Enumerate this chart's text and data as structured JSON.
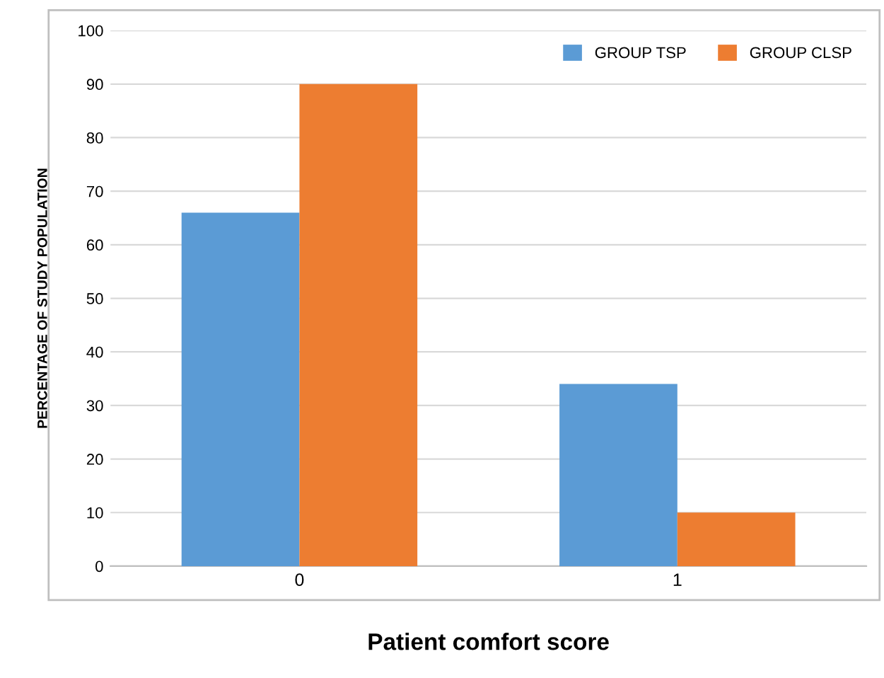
{
  "chart_data": {
    "type": "bar",
    "xlabel": "Patient comfort score",
    "ylabel": "PERCENTAGE OF STUDY POPULATION",
    "categories": [
      "0",
      "1"
    ],
    "series": [
      {
        "name": "GROUP TSP",
        "color": "#5b9bd5",
        "values": [
          66,
          34
        ]
      },
      {
        "name": "GROUP CLSP",
        "color": "#ed7d31",
        "values": [
          90,
          10
        ]
      }
    ],
    "ylim": [
      0,
      100
    ],
    "yticks": [
      0,
      10,
      20,
      30,
      40,
      50,
      60,
      70,
      80,
      90,
      100
    ],
    "grid": "y",
    "legend": "top right"
  }
}
